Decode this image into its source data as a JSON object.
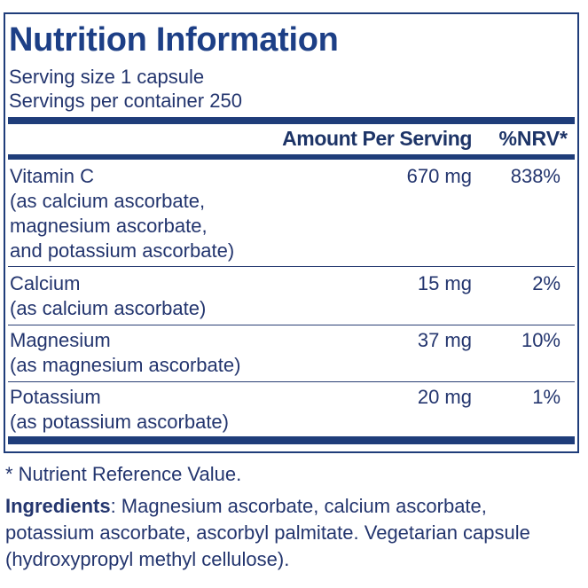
{
  "title": "Nutrition Information",
  "serving": {
    "size": "Serving size  1 capsule",
    "per_container": "Servings per container  250"
  },
  "table": {
    "headers": {
      "amount": "Amount Per Serving",
      "nrv": "%NRV*"
    },
    "rows": [
      {
        "name": "Vitamin C",
        "source_lines": [
          "(as calcium ascorbate,",
          "magnesium ascorbate,",
          "and potassium ascorbate)"
        ],
        "amount": "670 mg",
        "nrv": "838%"
      },
      {
        "name": "Calcium",
        "source_lines": [
          "(as calcium ascorbate)"
        ],
        "amount": "15 mg",
        "nrv": "2%"
      },
      {
        "name": "Magnesium",
        "source_lines": [
          "(as magnesium ascorbate)"
        ],
        "amount": "37 mg",
        "nrv": "10%"
      },
      {
        "name": "Potassium",
        "source_lines": [
          "(as potassium ascorbate)"
        ],
        "amount": "20 mg",
        "nrv": "1%"
      }
    ]
  },
  "footnote": "* Nutrient Reference Value.",
  "ingredients": {
    "label": "Ingredients",
    "text": ": Magnesium ascorbate, calcium ascorbate, potassium ascorbate, ascorbyl palmitate. Vegetarian capsule (hydroxypropyl methyl cellulose)."
  },
  "colors": {
    "text": "#23356e",
    "title": "#1d3f86",
    "rule": "#1f3d7a"
  }
}
